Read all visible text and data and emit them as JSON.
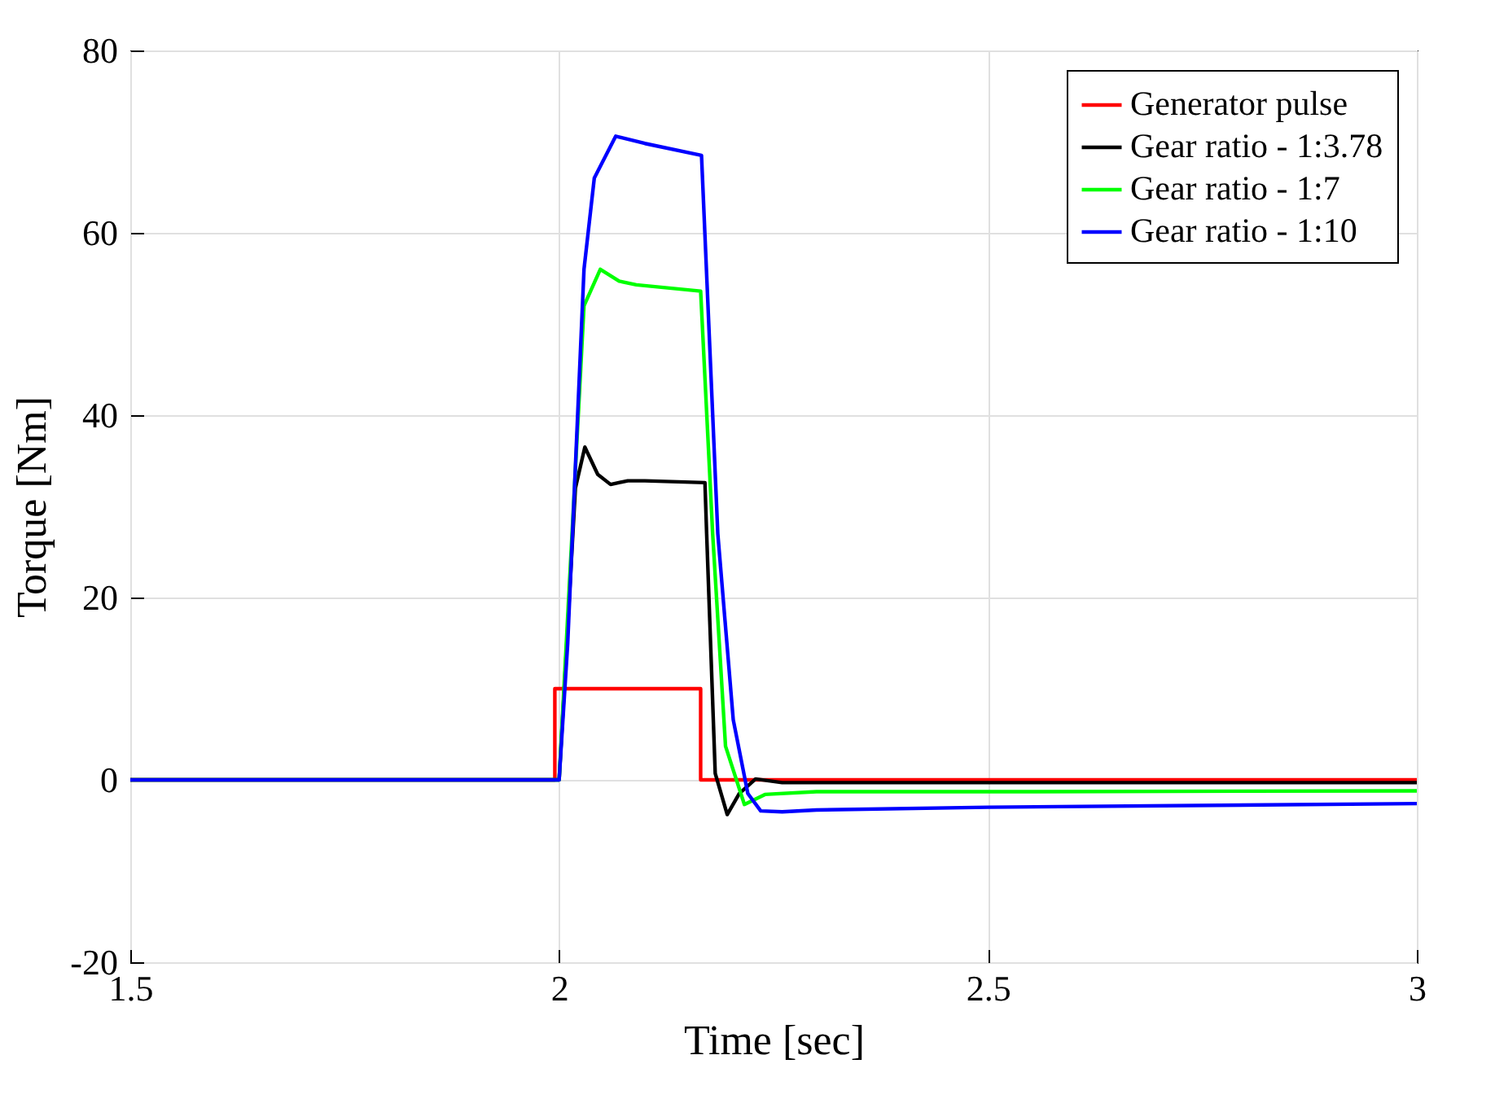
{
  "chart_data": {
    "type": "line",
    "xlabel": "Time [sec]",
    "ylabel": "Torque [Nm]",
    "xlim": [
      1.5,
      3
    ],
    "ylim": [
      -20,
      80
    ],
    "xticks": [
      1.5,
      {
        "value": 2,
        "label": "2"
      },
      2.5,
      {
        "value": 3,
        "label": "3"
      }
    ],
    "yticks": [
      -20,
      0,
      20,
      40,
      60,
      80
    ],
    "grid": true,
    "legend": "top right",
    "series": [
      {
        "name": "Generator pulse",
        "color": "#ff0000",
        "x": [
          1.5,
          1.995,
          1.995,
          2.165,
          2.165,
          3
        ],
        "values": [
          0,
          0,
          10,
          10,
          0,
          0
        ]
      },
      {
        "name": "Gear ratio - 1:3.78",
        "color": "#000000",
        "x": [
          1.5,
          2.0,
          2.019,
          2.03,
          2.045,
          2.06,
          2.08,
          2.1,
          2.17,
          2.172,
          2.182,
          2.196,
          2.21,
          2.229,
          2.26,
          2.5,
          3
        ],
        "values": [
          0,
          0,
          32,
          36.5,
          33.5,
          32.4,
          32.8,
          32.8,
          32.6,
          27,
          0.7,
          -3.8,
          -1.5,
          0.1,
          -0.3,
          -0.3,
          -0.3
        ]
      },
      {
        "name": "Gear ratio - 1:7",
        "color": "#00ff00",
        "x": [
          1.5,
          2.0,
          2.029,
          2.048,
          2.07,
          2.09,
          2.165,
          2.179,
          2.194,
          2.216,
          2.24,
          2.3,
          2.5,
          3
        ],
        "values": [
          0,
          0,
          52,
          56,
          54.7,
          54.3,
          53.6,
          27,
          3.7,
          -2.7,
          -1.6,
          -1.3,
          -1.3,
          -1.2
        ]
      },
      {
        "name": "Gear ratio - 1:10",
        "color": "#0000ff",
        "x": [
          1.5,
          2.0,
          2.01,
          2.029,
          2.041,
          2.066,
          2.1,
          2.166,
          2.185,
          2.203,
          2.22,
          2.235,
          2.26,
          2.3,
          2.5,
          3
        ],
        "values": [
          0,
          0,
          15,
          56,
          66,
          70.6,
          69.8,
          68.5,
          27,
          6.6,
          -1.5,
          -3.4,
          -3.5,
          -3.3,
          -3.0,
          -2.6
        ]
      }
    ]
  }
}
